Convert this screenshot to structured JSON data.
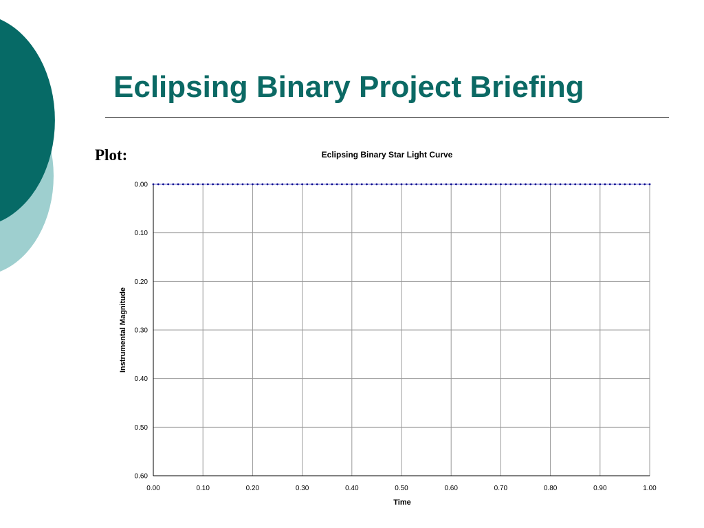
{
  "slide": {
    "title": "Eclipsing Binary Project Briefing",
    "section_label": "Plot:",
    "colors": {
      "title": "#0b6964",
      "circle_dark": "#066a66",
      "circle_light": "#9ecfcf",
      "series": "#00008b"
    }
  },
  "chart_data": {
    "type": "line",
    "title": "Eclipsing Binary Star Light Curve",
    "xlabel": "Time",
    "ylabel": "Instrumental Magnitude",
    "xlim": [
      0,
      1
    ],
    "ylim": [
      0,
      0.6
    ],
    "y_reversed": true,
    "grid": true,
    "xticks": [
      "0.00",
      "0.10",
      "0.20",
      "0.30",
      "0.40",
      "0.50",
      "0.60",
      "0.70",
      "0.80",
      "0.90",
      "1.00"
    ],
    "yticks": [
      "0.00",
      "0.10",
      "0.20",
      "0.30",
      "0.40",
      "0.50",
      "0.60"
    ],
    "series": [
      {
        "x": [
          0,
          0.01,
          0.02,
          0.03,
          0.04,
          0.05,
          0.06,
          0.07,
          0.08,
          0.09,
          0.1,
          0.11,
          0.12,
          0.13,
          0.14,
          0.15,
          0.16,
          0.17,
          0.18,
          0.19,
          0.2,
          0.21,
          0.22,
          0.23,
          0.24,
          0.25,
          0.26,
          0.27,
          0.28,
          0.29,
          0.3,
          0.31,
          0.32,
          0.33,
          0.34,
          0.35,
          0.36,
          0.37,
          0.38,
          0.39,
          0.4,
          0.41,
          0.42,
          0.43,
          0.44,
          0.45,
          0.46,
          0.47,
          0.48,
          0.49,
          0.5,
          0.51,
          0.52,
          0.53,
          0.54,
          0.55,
          0.56,
          0.57,
          0.58,
          0.59,
          0.6,
          0.61,
          0.62,
          0.63,
          0.64,
          0.65,
          0.66,
          0.67,
          0.68,
          0.69,
          0.7,
          0.71,
          0.72,
          0.73,
          0.74,
          0.75,
          0.76,
          0.77,
          0.78,
          0.79,
          0.8,
          0.81,
          0.82,
          0.83,
          0.84,
          0.85,
          0.86,
          0.87,
          0.88,
          0.89,
          0.9,
          0.91,
          0.92,
          0.93,
          0.94,
          0.95,
          0.96,
          0.97,
          0.98,
          0.99,
          1
        ],
        "y": [
          0,
          0,
          0,
          0,
          0,
          0,
          0,
          0,
          0,
          0,
          0,
          0,
          0,
          0,
          0,
          0,
          0,
          0,
          0,
          0,
          0,
          0,
          0,
          0,
          0,
          0,
          0,
          0,
          0,
          0,
          0,
          0,
          0,
          0,
          0,
          0,
          0,
          0,
          0,
          0,
          0,
          0,
          0,
          0,
          0,
          0,
          0,
          0,
          0,
          0,
          0,
          0,
          0,
          0,
          0,
          0,
          0,
          0,
          0,
          0,
          0,
          0,
          0,
          0,
          0,
          0,
          0,
          0,
          0,
          0,
          0,
          0,
          0,
          0,
          0,
          0,
          0,
          0,
          0,
          0,
          0,
          0,
          0,
          0,
          0,
          0,
          0,
          0,
          0,
          0,
          0,
          0,
          0,
          0,
          0,
          0,
          0,
          0,
          0,
          0,
          0
        ]
      }
    ]
  }
}
